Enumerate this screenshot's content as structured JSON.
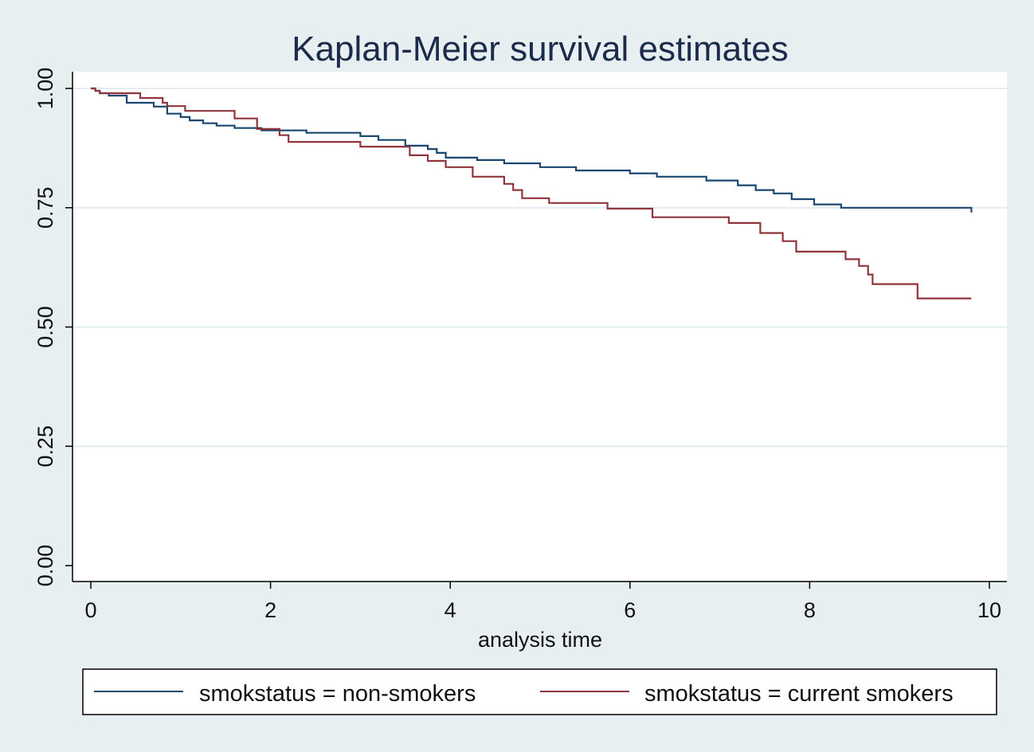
{
  "chart_data": {
    "type": "line",
    "title": "Kaplan-Meier survival estimates",
    "xlabel": "analysis time",
    "ylabel": "",
    "xlim": [
      0,
      10
    ],
    "ylim": [
      0,
      1
    ],
    "xticks": [
      0,
      2,
      4,
      6,
      8,
      10
    ],
    "xtick_labels": [
      "0",
      "2",
      "4",
      "6",
      "8",
      "10"
    ],
    "yticks": [
      0,
      0.25,
      0.5,
      0.75,
      1
    ],
    "ytick_labels": [
      "0.00",
      "0.25",
      "0.50",
      "0.75",
      "1.00"
    ],
    "grid": true,
    "step": true,
    "legend_position": "bottom",
    "series": [
      {
        "name": "smokstatus = non-smokers",
        "color": "#1a476f",
        "x": [
          0,
          0.05,
          0.1,
          0.2,
          0.4,
          0.7,
          0.85,
          1.0,
          1.1,
          1.25,
          1.4,
          1.6,
          1.9,
          2.4,
          3.0,
          3.2,
          3.5,
          3.75,
          3.85,
          3.95,
          4.3,
          4.6,
          5.0,
          5.4,
          6.0,
          6.3,
          6.85,
          7.2,
          7.4,
          7.6,
          7.8,
          8.05,
          8.35,
          9.8
        ],
        "y": [
          1.0,
          0.995,
          0.99,
          0.985,
          0.97,
          0.962,
          0.947,
          0.94,
          0.933,
          0.927,
          0.922,
          0.917,
          0.912,
          0.907,
          0.9,
          0.892,
          0.88,
          0.873,
          0.865,
          0.855,
          0.85,
          0.843,
          0.835,
          0.828,
          0.822,
          0.815,
          0.807,
          0.797,
          0.787,
          0.78,
          0.768,
          0.757,
          0.75,
          0.74
        ]
      },
      {
        "name": "smokstatus = current smokers",
        "color": "#90353b",
        "x": [
          0,
          0.05,
          0.1,
          0.55,
          0.8,
          0.85,
          1.05,
          1.6,
          1.85,
          2.1,
          2.2,
          3.0,
          3.55,
          3.75,
          3.95,
          4.25,
          4.6,
          4.7,
          4.8,
          5.1,
          5.75,
          6.25,
          7.1,
          7.45,
          7.7,
          7.85,
          8.4,
          8.55,
          8.65,
          8.7,
          9.2,
          9.8
        ],
        "y": [
          1.0,
          0.995,
          0.99,
          0.98,
          0.97,
          0.963,
          0.953,
          0.937,
          0.915,
          0.902,
          0.888,
          0.878,
          0.86,
          0.848,
          0.835,
          0.815,
          0.8,
          0.787,
          0.77,
          0.76,
          0.748,
          0.73,
          0.718,
          0.697,
          0.68,
          0.658,
          0.642,
          0.628,
          0.61,
          0.59,
          0.56,
          0.56
        ]
      }
    ]
  }
}
